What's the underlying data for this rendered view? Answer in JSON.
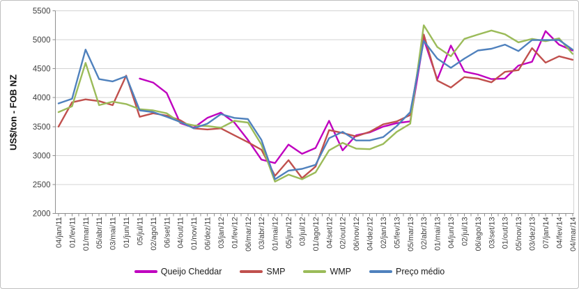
{
  "chart_data": {
    "type": "line",
    "title": "",
    "ylabel": "US$/ton - FOB NZ",
    "xlabel": "",
    "ylim": [
      2000,
      5500
    ],
    "ystep": 500,
    "y_ticks": [
      5500,
      5000,
      4500,
      4000,
      3500,
      3000,
      2500,
      2000
    ],
    "grid": true,
    "legend_position": "bottom",
    "categories": [
      "04/jan/11",
      "01/fev/11",
      "01/mar/11",
      "05/abr/11",
      "03/mai/11",
      "01/jun/11",
      "05/jul/11",
      "02/ago/11",
      "06/set/11",
      "04/out/11",
      "01/nov/11",
      "06/dez/11",
      "03/jan/12",
      "01/fev/12",
      "06/mar/12",
      "03/abr/12",
      "01/mai/12",
      "05/jun/12",
      "03/jul/12",
      "01/ago/12",
      "04/set/12",
      "02/out/12",
      "06/nov/12",
      "04/dez/12",
      "02/jan/13",
      "05/fev/13",
      "05/mar/13",
      "02/abr/13",
      "01/mai/13",
      "04/jun/13",
      "02/jul/13",
      "06/ago/13",
      "03/set/13",
      "01/out/13",
      "05/nov/13",
      "03/dez/13",
      "07/jan/14",
      "04/fev/14",
      "04/mar/14"
    ],
    "series": [
      {
        "name": "Queijo Cheddar",
        "color": "#BF00BF",
        "values": [
          null,
          null,
          null,
          null,
          null,
          null,
          4330,
          4260,
          4080,
          3560,
          3480,
          3650,
          3740,
          3570,
          3270,
          2930,
          2870,
          3190,
          3030,
          3130,
          3600,
          3090,
          3350,
          3400,
          3500,
          3560,
          3590,
          5010,
          4315,
          4900,
          4450,
          4400,
          4320,
          4330,
          4555,
          4620,
          5150,
          4915,
          4815
        ]
      },
      {
        "name": "SMP",
        "color": "#C0504D",
        "values": [
          3500,
          3920,
          3970,
          3940,
          3870,
          4380,
          3670,
          3730,
          3690,
          3610,
          3470,
          3450,
          3470,
          3350,
          3230,
          3100,
          2650,
          2920,
          2610,
          2810,
          3440,
          3390,
          3330,
          3410,
          3540,
          3590,
          3700,
          5090,
          4295,
          4175,
          4355,
          4330,
          4265,
          4445,
          4475,
          4855,
          4605,
          4715,
          4655
        ]
      },
      {
        "name": "WMP",
        "color": "#9BBB59",
        "values": [
          3750,
          3850,
          4600,
          3870,
          3930,
          3890,
          3800,
          3780,
          3730,
          3570,
          3520,
          3510,
          3480,
          3600,
          3570,
          3190,
          2550,
          2670,
          2590,
          2710,
          3090,
          3220,
          3120,
          3110,
          3200,
          3410,
          3550,
          5250,
          4875,
          4715,
          5015,
          5090,
          5160,
          5095,
          4955,
          5015,
          4975,
          5025,
          4755
        ]
      },
      {
        "name": "Preço médio",
        "color": "#4F81BD",
        "values": [
          3900,
          3980,
          4830,
          4320,
          4280,
          4370,
          3780,
          3750,
          3670,
          3580,
          3470,
          3550,
          3715,
          3650,
          3630,
          3270,
          2590,
          2740,
          2770,
          2840,
          3300,
          3410,
          3260,
          3260,
          3320,
          3510,
          3750,
          4980,
          4675,
          4515,
          4675,
          4815,
          4845,
          4915,
          4805,
          4995,
          4995,
          4995,
          4830
        ]
      }
    ],
    "colors": {
      "gridline": "#d3d3d3",
      "axis": "#8e8e8e",
      "tick_label": "#3f3f3f"
    }
  }
}
